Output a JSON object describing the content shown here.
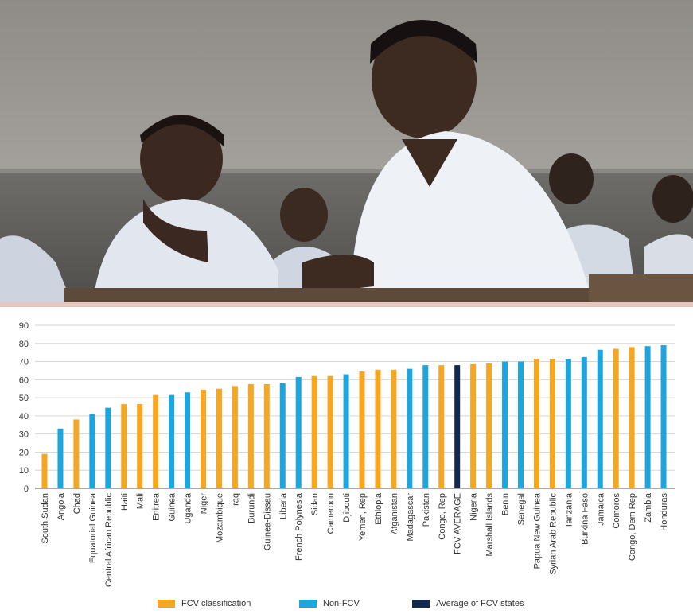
{
  "photo": {
    "subject": "students in classroom",
    "icon": "photo-students-classroom"
  },
  "colors": {
    "fcv": "#f5a623",
    "non_fcv": "#1ea5dd",
    "average": "#12284c",
    "grid": "#d6d6d6",
    "axis": "#555555",
    "text": "#333333"
  },
  "chart_data": {
    "type": "bar",
    "title": "",
    "xlabel": "",
    "ylabel": "",
    "ylim": [
      0,
      90
    ],
    "yticks": [
      0,
      10,
      20,
      30,
      40,
      50,
      60,
      70,
      80,
      90
    ],
    "grid": true,
    "legend_placement": "bottom",
    "categories": [
      "South Sudan",
      "Angola",
      "Chad",
      "Equatorial Guinea",
      "Central African Republic",
      "Haiti",
      "Mali",
      "Enitrea",
      "Guinea",
      "Uganda",
      "Niger",
      "Mozambique",
      "Iraq",
      "Burundi",
      "Guinea-Bissau",
      "Liberia",
      "French Polynesia",
      "Sidan",
      "Cameroon",
      "Djibouti",
      "Yemen, Rep",
      "Ethiopia",
      "Afganistan",
      "Madagascar",
      "Pakistan",
      "Congo, Rep",
      "FCV AVERAGE",
      "Nigeria",
      "Marshall Islands",
      "Benin",
      "Senegal",
      "Papua New Guinea",
      "Syrian Arab Republic",
      "Tanzania",
      "Burkina Faso",
      "Jamaica",
      "Comoros",
      "Congo, Dem Rep",
      "Zambia",
      "Honduras"
    ],
    "values": [
      19,
      33,
      38,
      41,
      44.5,
      46.5,
      46.5,
      51.5,
      51.5,
      53,
      54.5,
      55,
      56.5,
      57.5,
      57.5,
      58,
      61.5,
      62,
      62,
      63,
      64.5,
      65.5,
      65.5,
      66,
      68,
      68,
      68,
      68.5,
      69,
      70,
      70,
      71.5,
      71.5,
      71.5,
      72.5,
      76.5,
      77,
      78,
      78.5,
      79
    ],
    "groups": [
      "fcv",
      "non",
      "fcv",
      "non",
      "non",
      "fcv",
      "fcv",
      "fcv",
      "non",
      "non",
      "fcv",
      "fcv",
      "fcv",
      "fcv",
      "fcv",
      "non",
      "non",
      "fcv",
      "fcv",
      "non",
      "fcv",
      "fcv",
      "fcv",
      "non",
      "non",
      "fcv",
      "avg",
      "fcv",
      "fcv",
      "non",
      "non",
      "fcv",
      "fcv",
      "non",
      "non",
      "non",
      "fcv",
      "fcv",
      "non",
      "non"
    ],
    "legend": [
      {
        "key": "fcv",
        "label": "FCV classification"
      },
      {
        "key": "non",
        "label": "Non-FCV"
      },
      {
        "key": "avg",
        "label": "Average of FCV states"
      }
    ]
  }
}
